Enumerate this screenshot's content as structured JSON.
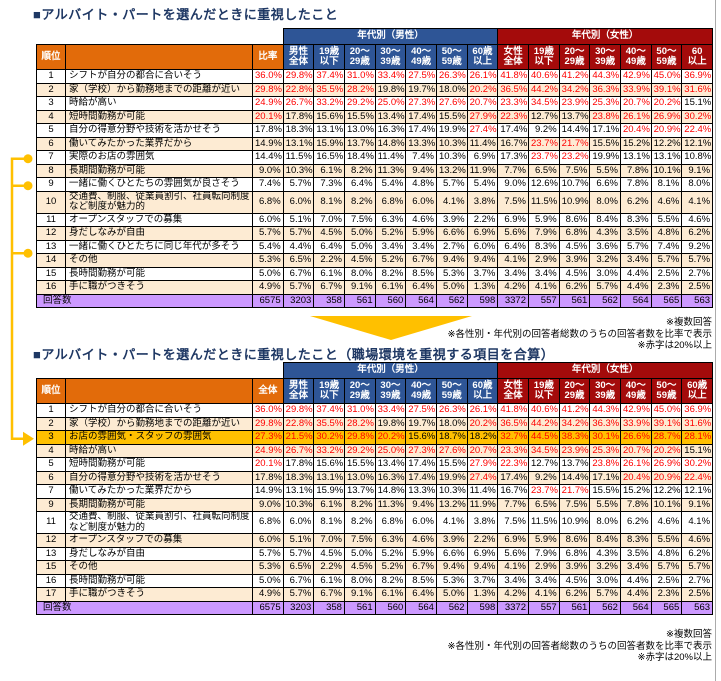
{
  "red_threshold_percent": 20,
  "colors": {
    "header_orange": "#E26B0A",
    "male_blue": "#2E5596",
    "female_dark_red": "#A40B0B",
    "row_cream": "#FDEBD3",
    "total_row_purple": "#CC99FF",
    "highlight_gold": "#FFC000",
    "value_red": "#FF0000",
    "connector_gold": "#FFC000",
    "title_navy": "#1F3864"
  },
  "connector": {
    "linked_table1_ranks": [
      "7",
      "9",
      "13"
    ],
    "merged_into_table2_rank": "3"
  },
  "table1": {
    "title": "■アルバイト・パートを選んだときに重視したこと",
    "group_headers": {
      "male": "年代別（男性）",
      "female": "年代別（女性）"
    },
    "columns": {
      "rank": "順位",
      "item": "",
      "ratio": "比率",
      "male": [
        "男性\n全体",
        "19歳\n以下",
        "20～\n29歳",
        "30～\n39歳",
        "40～\n49歳",
        "50～\n59歳",
        "60歳\n以上"
      ],
      "female": [
        "女性\n全体",
        "19歳\n以下",
        "20～\n29歳",
        "30～\n39歳",
        "40～\n49歳",
        "50～\n59歳",
        "60\n以上"
      ]
    },
    "rows": [
      {
        "rank": "1",
        "label": "シフトが自分の都合に合いそう",
        "values": [
          "36.0%",
          "29.8%",
          "37.4%",
          "31.0%",
          "33.4%",
          "27.5%",
          "26.3%",
          "26.1%",
          "41.8%",
          "40.6%",
          "41.2%",
          "44.3%",
          "42.9%",
          "45.0%",
          "36.9%"
        ]
      },
      {
        "rank": "2",
        "label": "家（学校）から勤務地までの距離が近い",
        "values": [
          "29.8%",
          "22.8%",
          "35.5%",
          "28.2%",
          "19.8%",
          "19.7%",
          "18.0%",
          "20.2%",
          "36.5%",
          "44.2%",
          "34.2%",
          "36.3%",
          "33.9%",
          "39.1%",
          "31.6%"
        ]
      },
      {
        "rank": "3",
        "label": "時給が高い",
        "values": [
          "24.9%",
          "26.7%",
          "33.2%",
          "29.2%",
          "25.0%",
          "27.3%",
          "27.6%",
          "20.7%",
          "23.3%",
          "34.5%",
          "23.9%",
          "25.3%",
          "20.7%",
          "20.2%",
          "15.1%"
        ]
      },
      {
        "rank": "4",
        "label": "短時間勤務が可能",
        "values": [
          "20.1%",
          "17.8%",
          "15.6%",
          "15.5%",
          "13.4%",
          "17.4%",
          "15.5%",
          "27.9%",
          "22.3%",
          "12.7%",
          "13.7%",
          "23.8%",
          "26.1%",
          "26.9%",
          "30.2%"
        ]
      },
      {
        "rank": "5",
        "label": "自分の得意分野や技術を活かせそう",
        "values": [
          "17.8%",
          "18.3%",
          "13.1%",
          "13.0%",
          "16.3%",
          "17.4%",
          "19.9%",
          "27.4%",
          "17.4%",
          "9.2%",
          "14.4%",
          "17.1%",
          "20.4%",
          "20.9%",
          "22.4%"
        ]
      },
      {
        "rank": "6",
        "label": "働いてみたかった業界だから",
        "values": [
          "14.9%",
          "13.1%",
          "15.9%",
          "13.7%",
          "14.8%",
          "13.3%",
          "10.3%",
          "11.4%",
          "16.7%",
          "23.7%",
          "21.7%",
          "15.5%",
          "15.2%",
          "12.2%",
          "12.1%"
        ]
      },
      {
        "rank": "7",
        "label": "実際のお店の雰囲気",
        "values": [
          "14.4%",
          "11.5%",
          "16.5%",
          "18.4%",
          "11.4%",
          "7.4%",
          "10.3%",
          "6.9%",
          "17.3%",
          "23.7%",
          "23.2%",
          "19.9%",
          "13.1%",
          "13.1%",
          "10.8%"
        ]
      },
      {
        "rank": "8",
        "label": "長期間勤務が可能",
        "values": [
          "9.0%",
          "10.3%",
          "6.1%",
          "8.2%",
          "11.3%",
          "9.4%",
          "13.2%",
          "11.9%",
          "7.7%",
          "6.5%",
          "7.5%",
          "5.5%",
          "7.8%",
          "10.1%",
          "9.1%"
        ]
      },
      {
        "rank": "9",
        "label": "一緒に働くひとたちの雰囲気が良さそう",
        "values": [
          "7.4%",
          "5.7%",
          "7.3%",
          "6.4%",
          "5.4%",
          "4.8%",
          "5.7%",
          "5.4%",
          "9.0%",
          "12.6%",
          "10.7%",
          "6.6%",
          "7.8%",
          "8.1%",
          "8.0%"
        ]
      },
      {
        "rank": "10",
        "label": "交通費、制服、従業員割引、社員転向制度など制度が魅力的",
        "values": [
          "6.8%",
          "6.0%",
          "8.1%",
          "8.2%",
          "6.8%",
          "6.0%",
          "4.1%",
          "3.8%",
          "7.5%",
          "11.5%",
          "10.9%",
          "8.0%",
          "6.2%",
          "4.6%",
          "4.1%"
        ]
      },
      {
        "rank": "11",
        "label": "オープンスタッフでの募集",
        "values": [
          "6.0%",
          "5.1%",
          "7.0%",
          "7.5%",
          "6.3%",
          "4.6%",
          "3.9%",
          "2.2%",
          "6.9%",
          "5.9%",
          "8.6%",
          "8.4%",
          "8.3%",
          "5.5%",
          "4.6%"
        ]
      },
      {
        "rank": "12",
        "label": "身だしなみが自由",
        "values": [
          "5.7%",
          "5.7%",
          "4.5%",
          "5.0%",
          "5.2%",
          "5.9%",
          "6.6%",
          "6.9%",
          "5.6%",
          "7.9%",
          "6.8%",
          "4.3%",
          "3.5%",
          "4.8%",
          "6.2%"
        ]
      },
      {
        "rank": "13",
        "label": "一緒に働くひとたちに同じ年代が多そう",
        "values": [
          "5.4%",
          "4.4%",
          "6.4%",
          "5.0%",
          "3.4%",
          "3.4%",
          "2.7%",
          "6.0%",
          "6.4%",
          "8.3%",
          "4.5%",
          "3.6%",
          "5.7%",
          "7.4%",
          "9.2%"
        ]
      },
      {
        "rank": "14",
        "label": "その他",
        "values": [
          "5.3%",
          "6.5%",
          "2.2%",
          "4.5%",
          "5.2%",
          "6.7%",
          "9.4%",
          "9.4%",
          "4.1%",
          "2.9%",
          "3.9%",
          "3.2%",
          "3.4%",
          "5.7%",
          "5.7%"
        ]
      },
      {
        "rank": "15",
        "label": "長時間勤務が可能",
        "values": [
          "5.0%",
          "6.7%",
          "6.1%",
          "8.0%",
          "8.2%",
          "8.5%",
          "5.3%",
          "3.7%",
          "3.4%",
          "3.4%",
          "4.5%",
          "3.0%",
          "4.4%",
          "2.5%",
          "2.7%"
        ]
      },
      {
        "rank": "16",
        "label": "手に職がつきそう",
        "values": [
          "4.9%",
          "5.7%",
          "6.7%",
          "9.1%",
          "6.1%",
          "6.4%",
          "5.0%",
          "1.3%",
          "4.2%",
          "4.1%",
          "6.2%",
          "5.7%",
          "4.4%",
          "2.3%",
          "2.5%"
        ]
      }
    ],
    "total_row": {
      "label": "回答数",
      "values": [
        "6575",
        "3203",
        "358",
        "561",
        "560",
        "564",
        "562",
        "598",
        "3372",
        "557",
        "561",
        "562",
        "564",
        "565",
        "563"
      ]
    },
    "notes": [
      "※複数回答",
      "※各性別・年代別の回答者総数のうちの回答者数を比率で表示",
      "※赤字は20%以上"
    ]
  },
  "table2": {
    "title": "■アルバイト・パートを選んだときに重視したこと（職場環境を重視する項目を合算）",
    "group_headers": {
      "male": "年代別（男性）",
      "female": "年代別（女性）"
    },
    "columns": {
      "rank": "順位",
      "item": "",
      "ratio": "全体",
      "male": [
        "男性\n全体",
        "19歳\n以下",
        "20～\n29歳",
        "30～\n39歳",
        "40～\n49歳",
        "50～\n59歳",
        "60歳\n以上"
      ],
      "female": [
        "女性\n全体",
        "19歳\n以下",
        "20～\n29歳",
        "30～\n39歳",
        "40～\n49歳",
        "50～\n59歳",
        "60歳\n以上"
      ]
    },
    "rows": [
      {
        "rank": "1",
        "label": "シフトが自分の都合に合いそう",
        "values": [
          "36.0%",
          "29.8%",
          "37.4%",
          "31.0%",
          "33.4%",
          "27.5%",
          "26.3%",
          "26.1%",
          "41.8%",
          "40.6%",
          "41.2%",
          "44.3%",
          "42.9%",
          "45.0%",
          "36.9%"
        ]
      },
      {
        "rank": "2",
        "label": "家（学校）から勤務地までの距離が近い",
        "values": [
          "29.8%",
          "22.8%",
          "35.5%",
          "28.2%",
          "19.8%",
          "19.7%",
          "18.0%",
          "20.2%",
          "36.5%",
          "44.2%",
          "34.2%",
          "36.3%",
          "33.9%",
          "39.1%",
          "31.6%"
        ]
      },
      {
        "rank": "3",
        "label": "お店の雰囲気・スタッフの雰囲気",
        "highlight": true,
        "values": [
          "27.3%",
          "21.5%",
          "30.2%",
          "29.8%",
          "20.2%",
          "15.6%",
          "18.7%",
          "18.2%",
          "32.7%",
          "44.5%",
          "38.3%",
          "30.1%",
          "26.6%",
          "28.7%",
          "28.1%"
        ]
      },
      {
        "rank": "4",
        "label": "時給が高い",
        "values": [
          "24.9%",
          "26.7%",
          "33.2%",
          "29.2%",
          "25.0%",
          "27.3%",
          "27.6%",
          "20.7%",
          "23.3%",
          "34.5%",
          "23.9%",
          "25.3%",
          "20.7%",
          "20.2%",
          "15.1%"
        ]
      },
      {
        "rank": "5",
        "label": "短時間勤務が可能",
        "values": [
          "20.1%",
          "17.8%",
          "15.6%",
          "15.5%",
          "13.4%",
          "17.4%",
          "15.5%",
          "27.9%",
          "22.3%",
          "12.7%",
          "13.7%",
          "23.8%",
          "26.1%",
          "26.9%",
          "30.2%"
        ]
      },
      {
        "rank": "6",
        "label": "自分の得意分野や技術を活かせそう",
        "values": [
          "17.8%",
          "18.3%",
          "13.1%",
          "13.0%",
          "16.3%",
          "17.4%",
          "19.9%",
          "27.4%",
          "17.4%",
          "9.2%",
          "14.4%",
          "17.1%",
          "20.4%",
          "20.9%",
          "22.4%"
        ]
      },
      {
        "rank": "7",
        "label": "働いてみたかった業界だから",
        "values": [
          "14.9%",
          "13.1%",
          "15.9%",
          "13.7%",
          "14.8%",
          "13.3%",
          "10.3%",
          "11.4%",
          "16.7%",
          "23.7%",
          "21.7%",
          "15.5%",
          "15.2%",
          "12.2%",
          "12.1%"
        ]
      },
      {
        "rank": "9",
        "label": "長期間勤務が可能",
        "values": [
          "9.0%",
          "10.3%",
          "6.1%",
          "8.2%",
          "11.3%",
          "9.4%",
          "13.2%",
          "11.9%",
          "7.7%",
          "6.5%",
          "7.5%",
          "5.5%",
          "7.8%",
          "10.1%",
          "9.1%"
        ]
      },
      {
        "rank": "11",
        "label": "交通費、制服、従業員割引、社員転向制度など制度が魅力的",
        "values": [
          "6.8%",
          "6.0%",
          "8.1%",
          "8.2%",
          "6.8%",
          "6.0%",
          "4.1%",
          "3.8%",
          "7.5%",
          "11.5%",
          "10.9%",
          "8.0%",
          "6.2%",
          "4.6%",
          "4.1%"
        ]
      },
      {
        "rank": "12",
        "label": "オープンスタッフでの募集",
        "values": [
          "6.0%",
          "5.1%",
          "7.0%",
          "7.5%",
          "6.3%",
          "4.6%",
          "3.9%",
          "2.2%",
          "6.9%",
          "5.9%",
          "8.6%",
          "8.4%",
          "8.3%",
          "5.5%",
          "4.6%"
        ]
      },
      {
        "rank": "13",
        "label": "身だしなみが自由",
        "values": [
          "5.7%",
          "5.7%",
          "4.5%",
          "5.0%",
          "5.2%",
          "5.9%",
          "6.6%",
          "6.9%",
          "5.6%",
          "7.9%",
          "6.8%",
          "4.3%",
          "3.5%",
          "4.8%",
          "6.2%"
        ]
      },
      {
        "rank": "15",
        "label": "その他",
        "values": [
          "5.3%",
          "6.5%",
          "2.2%",
          "4.5%",
          "5.2%",
          "6.7%",
          "9.4%",
          "9.4%",
          "4.1%",
          "2.9%",
          "3.9%",
          "3.2%",
          "3.4%",
          "5.7%",
          "5.7%"
        ]
      },
      {
        "rank": "16",
        "label": "長時間勤務が可能",
        "values": [
          "5.0%",
          "6.7%",
          "6.1%",
          "8.0%",
          "8.2%",
          "8.5%",
          "5.3%",
          "3.7%",
          "3.4%",
          "3.4%",
          "4.5%",
          "3.0%",
          "4.4%",
          "2.5%",
          "2.7%"
        ]
      },
      {
        "rank": "17",
        "label": "手に職がつきそう",
        "values": [
          "4.9%",
          "5.7%",
          "6.7%",
          "9.1%",
          "6.1%",
          "6.4%",
          "5.0%",
          "1.3%",
          "4.2%",
          "4.1%",
          "6.2%",
          "5.7%",
          "4.4%",
          "2.3%",
          "2.5%"
        ]
      }
    ],
    "total_row": {
      "label": "回答数",
      "values": [
        "6575",
        "3203",
        "358",
        "561",
        "560",
        "564",
        "562",
        "598",
        "3372",
        "557",
        "561",
        "562",
        "564",
        "565",
        "563"
      ]
    },
    "notes": [
      "※複数回答",
      "※各性別・年代別の回答者総数のうちの回答者数を比率で表示",
      "※赤字は20%以上"
    ]
  }
}
